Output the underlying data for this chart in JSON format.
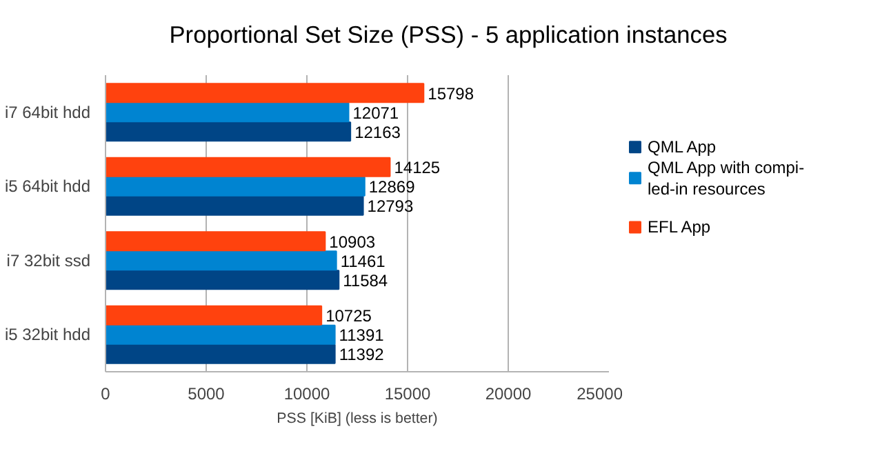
{
  "chart_data": {
    "type": "bar",
    "orientation": "horizontal",
    "title": "Proportional Set Size (PSS) - 5 application instances",
    "xlabel": "PSS [KiB] (less is better)",
    "categories": [
      "i7 64bit hdd",
      "i5 64bit hdd",
      "i7 32bit ssd",
      "i5 32bit hdd"
    ],
    "series": [
      {
        "name": "QML App",
        "color": "#004586",
        "values": [
          12163,
          12793,
          11584,
          11392
        ]
      },
      {
        "name": "QML App with compi-\nled-in resources",
        "color": "#0084d1",
        "values": [
          12071,
          12869,
          11461,
          11391
        ]
      },
      {
        "name": "EFL App",
        "color": "#ff420e",
        "values": [
          15798,
          14125,
          10903,
          10725
        ]
      }
    ],
    "xlim": [
      0,
      25000
    ],
    "xticks": [
      0,
      5000,
      10000,
      15000,
      20000,
      25000
    ],
    "grid": "x",
    "legend": "right",
    "data_labels": true
  }
}
